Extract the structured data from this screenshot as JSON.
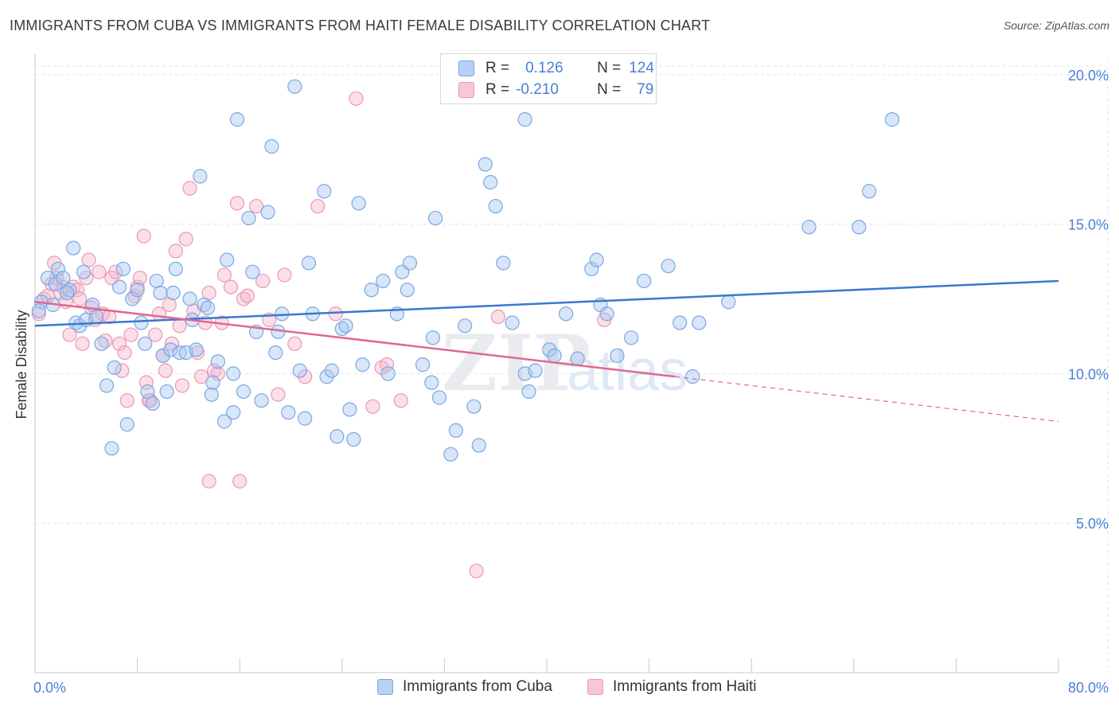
{
  "header": {
    "title": "IMMIGRANTS FROM CUBA VS IMMIGRANTS FROM HAITI FEMALE DISABILITY CORRELATION CHART",
    "source": "Source: ZipAtlas.com"
  },
  "stats_legend": {
    "rows": [
      {
        "r_label": "R =",
        "r_value": "0.126",
        "n_label": "N =",
        "n_value": "124"
      },
      {
        "r_label": "R =",
        "r_value": "-0.210",
        "n_label": "N =",
        "n_value": "79"
      }
    ]
  },
  "watermark": {
    "zip": "ZIP",
    "atlas": "atlas"
  },
  "colors": {
    "cuba_fill": "#a9c7f0",
    "cuba_stroke": "#7aa7e4",
    "cuba_line": "#3a78d0",
    "haiti_fill": "#f5b9cd",
    "haiti_stroke": "#ec97b4",
    "haiti_line": "#e0688f",
    "grid": "#dde3ec",
    "axis_text": "#4a7fd4"
  },
  "chart_data": {
    "type": "scatter",
    "title": "IMMIGRANTS FROM CUBA VS IMMIGRANTS FROM HAITI FEMALE DISABILITY CORRELATION CHART",
    "xlabel": "",
    "ylabel": "Female Disability",
    "xlim": [
      0,
      80
    ],
    "ylim": [
      0,
      20.5
    ],
    "x_tick_labels": [
      "0.0%",
      "80.0%"
    ],
    "y_ticks": [
      5,
      10,
      15,
      20
    ],
    "y_tick_labels": [
      "5.0%",
      "10.0%",
      "15.0%",
      "20.0%"
    ],
    "grid": true,
    "legend_position": "bottom",
    "series": [
      {
        "name": "Immigrants from Cuba",
        "r": 0.126,
        "n": 124,
        "trend": {
          "x0": 0,
          "y0": 11.6,
          "x1": 80,
          "y1": 13.1
        },
        "points": [
          [
            0.5,
            12.4
          ],
          [
            1,
            13.2
          ],
          [
            1.4,
            12.3
          ],
          [
            1.6,
            13.0
          ],
          [
            1.8,
            13.5
          ],
          [
            2.2,
            13.2
          ],
          [
            2.7,
            12.8
          ],
          [
            3,
            14.2
          ],
          [
            3.2,
            11.7
          ],
          [
            3.5,
            11.6
          ],
          [
            3.8,
            13.4
          ],
          [
            4,
            11.8
          ],
          [
            4.5,
            12.3
          ],
          [
            4.8,
            11.9
          ],
          [
            5.2,
            11.0
          ],
          [
            5.6,
            9.6
          ],
          [
            6,
            7.5
          ],
          [
            6.2,
            10.2
          ],
          [
            6.6,
            12.9
          ],
          [
            6.9,
            13.5
          ],
          [
            7.2,
            8.3
          ],
          [
            7.6,
            12.5
          ],
          [
            8,
            12.8
          ],
          [
            8.3,
            11.7
          ],
          [
            8.6,
            11.0
          ],
          [
            8.8,
            9.4
          ],
          [
            9.2,
            9.0
          ],
          [
            9.5,
            13.1
          ],
          [
            9.8,
            12.7
          ],
          [
            10,
            10.6
          ],
          [
            10.3,
            9.4
          ],
          [
            10.6,
            10.8
          ],
          [
            10.8,
            12.7
          ],
          [
            11,
            13.5
          ],
          [
            11.3,
            10.7
          ],
          [
            11.8,
            10.7
          ],
          [
            12.1,
            12.5
          ],
          [
            12.3,
            11.8
          ],
          [
            12.6,
            10.8
          ],
          [
            12.9,
            16.6
          ],
          [
            13.2,
            12.3
          ],
          [
            13.5,
            12.2
          ],
          [
            13.8,
            9.3
          ],
          [
            13.9,
            9.7
          ],
          [
            14.3,
            10.4
          ],
          [
            14.8,
            8.4
          ],
          [
            15,
            13.8
          ],
          [
            15.5,
            8.7
          ],
          [
            15.5,
            10.0
          ],
          [
            15.8,
            18.5
          ],
          [
            16.3,
            9.4
          ],
          [
            16.7,
            15.2
          ],
          [
            17,
            13.4
          ],
          [
            17.3,
            11.4
          ],
          [
            17.7,
            9.1
          ],
          [
            18.2,
            15.4
          ],
          [
            18.5,
            17.6
          ],
          [
            18.8,
            10.7
          ],
          [
            19,
            11.4
          ],
          [
            19.3,
            12.0
          ],
          [
            19.8,
            8.7
          ],
          [
            20.3,
            19.6
          ],
          [
            20.7,
            10.1
          ],
          [
            21.1,
            8.5
          ],
          [
            21.4,
            13.7
          ],
          [
            21.7,
            12.0
          ],
          [
            22.6,
            16.1
          ],
          [
            22.8,
            9.9
          ],
          [
            23.2,
            10.1
          ],
          [
            23.6,
            7.9
          ],
          [
            24,
            11.5
          ],
          [
            24.3,
            11.6
          ],
          [
            24.6,
            8.8
          ],
          [
            24.9,
            7.8
          ],
          [
            25.3,
            15.7
          ],
          [
            25.6,
            10.3
          ],
          [
            26.3,
            12.8
          ],
          [
            27.2,
            13.1
          ],
          [
            27.6,
            10.0
          ],
          [
            28.3,
            12.0
          ],
          [
            28.7,
            13.4
          ],
          [
            29.1,
            12.8
          ],
          [
            29.3,
            13.7
          ],
          [
            30.3,
            10.3
          ],
          [
            31,
            9.7
          ],
          [
            31.1,
            11.2
          ],
          [
            31.3,
            15.2
          ],
          [
            31.6,
            9.2
          ],
          [
            32.5,
            7.3
          ],
          [
            32.9,
            8.1
          ],
          [
            33.6,
            11.6
          ],
          [
            34.3,
            8.9
          ],
          [
            34.7,
            7.6
          ],
          [
            35.2,
            17.0
          ],
          [
            35.6,
            16.4
          ],
          [
            36,
            15.6
          ],
          [
            36.6,
            13.7
          ],
          [
            37.3,
            11.7
          ],
          [
            38.3,
            18.5
          ],
          [
            38.3,
            10.0
          ],
          [
            38.6,
            9.4
          ],
          [
            39.1,
            10.1
          ],
          [
            40.2,
            10.8
          ],
          [
            40.6,
            10.6
          ],
          [
            41.5,
            12.0
          ],
          [
            42.4,
            10.5
          ],
          [
            43.5,
            13.5
          ],
          [
            43.9,
            13.8
          ],
          [
            44.2,
            12.3
          ],
          [
            44.7,
            12.0
          ],
          [
            45.5,
            10.6
          ],
          [
            46.6,
            11.2
          ],
          [
            47.6,
            13.1
          ],
          [
            49.5,
            13.6
          ],
          [
            50.4,
            11.7
          ],
          [
            51.4,
            9.9
          ],
          [
            51.9,
            11.7
          ],
          [
            54.2,
            12.4
          ],
          [
            60.5,
            14.9
          ],
          [
            64.4,
            14.9
          ],
          [
            65.2,
            16.1
          ],
          [
            67,
            18.5
          ],
          [
            0.3,
            12.1
          ],
          [
            2.5,
            12.7
          ]
        ]
      },
      {
        "name": "Immigrants from Haiti",
        "r": -0.21,
        "n": 79,
        "trend": {
          "x0": 0,
          "y0": 12.4,
          "x1": 50,
          "y1": 9.9
        },
        "trend_dashed": {
          "x0": 50,
          "y0": 9.9,
          "x1": 80,
          "y1": 8.4
        },
        "points": [
          [
            0.3,
            12.0
          ],
          [
            0.7,
            12.5
          ],
          [
            1,
            12.6
          ],
          [
            1.3,
            13.0
          ],
          [
            1.5,
            13.7
          ],
          [
            1.7,
            13.2
          ],
          [
            2,
            12.7
          ],
          [
            2.2,
            12.9
          ],
          [
            2.4,
            12.4
          ],
          [
            2.7,
            11.3
          ],
          [
            3,
            12.9
          ],
          [
            3.3,
            12.8
          ],
          [
            3.5,
            12.5
          ],
          [
            3.7,
            11.0
          ],
          [
            4,
            13.2
          ],
          [
            4.2,
            13.8
          ],
          [
            4.4,
            12.2
          ],
          [
            4.7,
            11.8
          ],
          [
            5,
            13.4
          ],
          [
            5.3,
            12.0
          ],
          [
            5.5,
            11.1
          ],
          [
            5.8,
            11.9
          ],
          [
            6,
            13.2
          ],
          [
            6.3,
            13.4
          ],
          [
            6.6,
            11.0
          ],
          [
            6.8,
            10.1
          ],
          [
            7,
            10.7
          ],
          [
            7.2,
            9.1
          ],
          [
            7.5,
            11.3
          ],
          [
            7.8,
            12.6
          ],
          [
            8,
            12.9
          ],
          [
            8.2,
            13.2
          ],
          [
            8.5,
            14.6
          ],
          [
            8.7,
            9.7
          ],
          [
            9,
            9.1
          ],
          [
            9.4,
            11.3
          ],
          [
            9.7,
            12.0
          ],
          [
            10,
            10.6
          ],
          [
            10.2,
            10.1
          ],
          [
            10.5,
            12.3
          ],
          [
            10.7,
            11.0
          ],
          [
            11,
            14.1
          ],
          [
            11.3,
            11.6
          ],
          [
            11.5,
            9.6
          ],
          [
            11.8,
            14.5
          ],
          [
            12.1,
            16.2
          ],
          [
            12.4,
            12.1
          ],
          [
            12.7,
            10.7
          ],
          [
            13,
            9.9
          ],
          [
            13.3,
            11.7
          ],
          [
            13.6,
            12.7
          ],
          [
            14,
            10.1
          ],
          [
            14.3,
            10.0
          ],
          [
            14.6,
            11.7
          ],
          [
            14.8,
            13.3
          ],
          [
            15.3,
            12.9
          ],
          [
            15.8,
            15.7
          ],
          [
            16.3,
            12.5
          ],
          [
            16.6,
            12.6
          ],
          [
            17.3,
            15.6
          ],
          [
            17.8,
            13.1
          ],
          [
            18.3,
            11.8
          ],
          [
            19,
            9.3
          ],
          [
            19.5,
            13.3
          ],
          [
            20.3,
            11.0
          ],
          [
            21.1,
            9.9
          ],
          [
            22.1,
            15.6
          ],
          [
            23.5,
            12.0
          ],
          [
            25.1,
            19.2
          ],
          [
            26.4,
            8.9
          ],
          [
            27.1,
            10.2
          ],
          [
            27.5,
            10.3
          ],
          [
            28.6,
            9.1
          ],
          [
            34.5,
            3.4
          ],
          [
            13.6,
            6.4
          ],
          [
            16,
            6.4
          ],
          [
            8.9,
            9.1
          ],
          [
            36.2,
            11.9
          ],
          [
            44.5,
            11.8
          ]
        ]
      }
    ]
  },
  "bottom_legend": {
    "items": [
      {
        "label": "Immigrants from Cuba"
      },
      {
        "label": "Immigrants from Haiti"
      }
    ]
  }
}
